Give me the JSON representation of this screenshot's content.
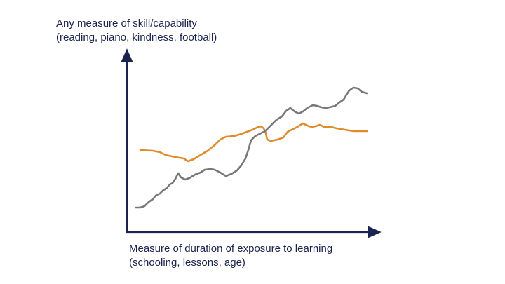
{
  "y_axis": {
    "line1": "Any measure of skill/capability",
    "line2": "(reading, piano, kindness, football)"
  },
  "x_axis": {
    "line1": "Measure of duration of exposure to learning",
    "line2": "(schooling, lessons, age)"
  },
  "colors": {
    "axis": "#1b2450",
    "text": "#1b2450",
    "grey_curve": "#787878",
    "orange_curve": "#e08a2e"
  }
}
